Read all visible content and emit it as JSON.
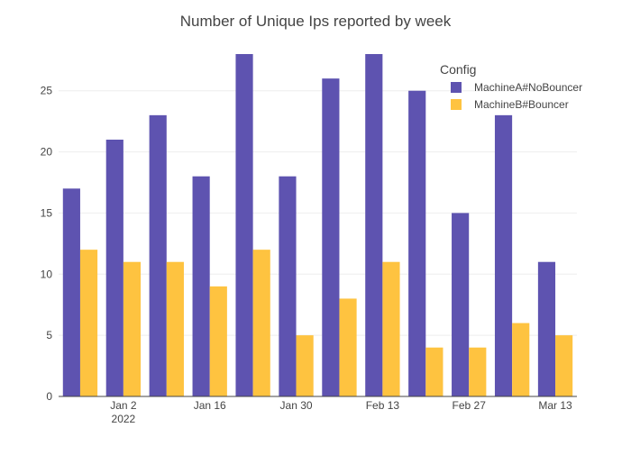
{
  "chart_data": {
    "type": "bar",
    "title": "Number of Unique Ips reported by week",
    "xlabel": "",
    "ylabel": "",
    "x": [
      "2021-12-26",
      "2022-01-02",
      "2022-01-09",
      "2022-01-16",
      "2022-01-23",
      "2022-01-30",
      "2022-02-06",
      "2022-02-13",
      "2022-02-20",
      "2022-02-27",
      "2022-03-06",
      "2022-03-13"
    ],
    "x_tick_labels": [
      {
        "x": "2022-01-02",
        "label": "Jan 2",
        "sublabel": "2022"
      },
      {
        "x": "2022-01-16",
        "label": "Jan 16"
      },
      {
        "x": "2022-01-30",
        "label": "Jan 30"
      },
      {
        "x": "2022-02-13",
        "label": "Feb 13"
      },
      {
        "x": "2022-02-27",
        "label": "Feb 27"
      },
      {
        "x": "2022-03-13",
        "label": "Mar 13"
      }
    ],
    "yticks": [
      0,
      5,
      10,
      15,
      20,
      25
    ],
    "ylim": [
      0,
      28
    ],
    "grid": true,
    "legend": {
      "title": "Config",
      "placement": "top-right"
    },
    "series": [
      {
        "name": "MachineA#NoBouncer",
        "color": "#5e53b0",
        "values": [
          17,
          21,
          23,
          18,
          28,
          18,
          26,
          28,
          25,
          15,
          23,
          11
        ]
      },
      {
        "name": "MachineB#Bouncer",
        "color": "#fec340",
        "values": [
          12,
          11,
          11,
          9,
          12,
          5,
          8,
          11,
          4,
          4,
          6,
          5
        ]
      }
    ]
  }
}
